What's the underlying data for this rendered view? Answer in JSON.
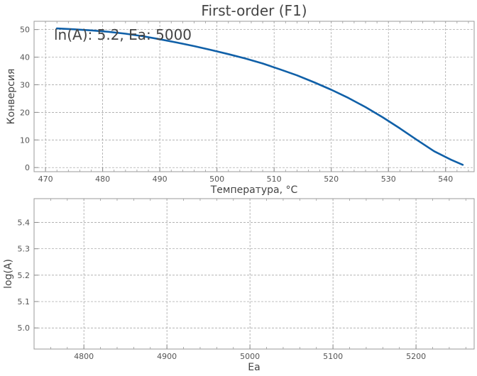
{
  "chart_data": [
    {
      "type": "line",
      "title": "First-order (F1)",
      "annotation": "ln(A): 5.2, Ea: 5000",
      "xlabel": "Температура, °C",
      "ylabel": "Конверсия",
      "xlim": [
        468,
        545
      ],
      "ylim": [
        -1.5,
        53
      ],
      "xticks": [
        470,
        480,
        490,
        500,
        510,
        520,
        530,
        540
      ],
      "yticks": [
        0,
        10,
        20,
        30,
        40,
        50
      ],
      "grid": true,
      "color": "#1060a8",
      "series": [
        {
          "x": [
            472,
            475,
            478,
            481,
            484,
            487,
            490,
            493,
            496,
            499,
            502,
            505,
            508,
            511,
            514,
            517,
            520,
            523,
            526,
            529,
            532,
            535,
            538,
            541,
            543
          ],
          "y": [
            50.4,
            50.1,
            49.7,
            49.2,
            48.5,
            47.6,
            46.5,
            45.3,
            44.0,
            42.6,
            41.1,
            39.5,
            37.7,
            35.6,
            33.4,
            30.9,
            28.2,
            25.2,
            21.9,
            18.2,
            14.2,
            10.0,
            5.9,
            2.8,
            1.0
          ]
        }
      ]
    },
    {
      "type": "line",
      "title": "",
      "xlabel": "Ea",
      "ylabel": "log(A)",
      "xlim": [
        4740,
        5270
      ],
      "ylim": [
        4.92,
        5.49
      ],
      "xticks": [
        4800,
        4900,
        5000,
        5100,
        5200
      ],
      "yticks": [
        5.0,
        5.1,
        5.2,
        5.3,
        5.4
      ],
      "ytick_labels": [
        "5.0",
        "5.1",
        "5.2",
        "5.3",
        "5.4"
      ],
      "grid": true,
      "series": []
    }
  ]
}
